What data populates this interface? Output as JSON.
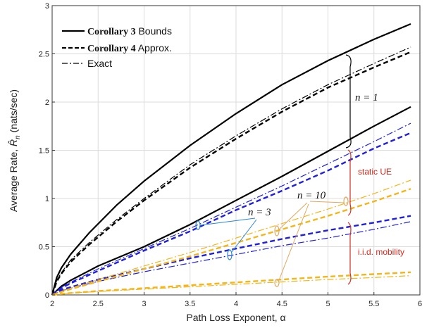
{
  "chart_data": {
    "type": "line",
    "xlabel": "Path Loss Exponent, α",
    "ylabel_main": "Average Rate, ",
    "ylabel_sym": "R̂",
    "ylabel_sub": "n",
    "ylabel_unit": " (nats/sec)",
    "xlim": [
      2,
      6
    ],
    "ylim": [
      0,
      3
    ],
    "xticks": [
      "2",
      "2.5",
      "3",
      "3.5",
      "4",
      "4.5",
      "5",
      "5.5",
      "6"
    ],
    "yticks": [
      "0",
      "0.5",
      "1",
      "1.5",
      "2",
      "2.5",
      "3"
    ],
    "grid": true,
    "legend_position": "top-left",
    "legend": [
      {
        "style": "solid",
        "bold": "Corollary 3",
        "rest": " Bounds"
      },
      {
        "style": "dashed",
        "bold": "Corollary 4",
        "rest": " Approx."
      },
      {
        "style": "dashdot",
        "bold": "",
        "rest": "Exact"
      }
    ],
    "colors": {
      "black": "#000000",
      "blue": "#1f1fdc",
      "yellow": "#f2b51a",
      "red": "#d42a1d",
      "bracket_blue": "#2a86d6",
      "bracket_orange": "#e0a860"
    },
    "series": [
      {
        "group": "n1",
        "style": "solid",
        "color": "black",
        "x": [
          2,
          2.05,
          2.1,
          2.2,
          2.4,
          2.7,
          3,
          3.5,
          4,
          4.5,
          5,
          5.5,
          5.9
        ],
        "y": [
          0,
          0.18,
          0.28,
          0.42,
          0.64,
          0.93,
          1.18,
          1.55,
          1.88,
          2.18,
          2.43,
          2.65,
          2.81
        ]
      },
      {
        "group": "n1",
        "style": "dashed",
        "color": "black",
        "x": [
          2,
          2.05,
          2.1,
          2.2,
          2.4,
          2.7,
          3,
          3.5,
          4,
          4.5,
          5,
          5.5,
          5.9
        ],
        "y": [
          0,
          0.14,
          0.22,
          0.34,
          0.52,
          0.76,
          0.98,
          1.32,
          1.62,
          1.9,
          2.15,
          2.36,
          2.52
        ]
      },
      {
        "group": "n1",
        "style": "dashdot",
        "color": "black",
        "x": [
          2,
          2.05,
          2.1,
          2.2,
          2.4,
          2.7,
          3,
          3.5,
          4,
          4.5,
          5,
          5.5,
          5.9
        ],
        "y": [
          0,
          0.15,
          0.23,
          0.36,
          0.54,
          0.78,
          1.0,
          1.35,
          1.65,
          1.93,
          2.18,
          2.4,
          2.57
        ]
      },
      {
        "group": "n3",
        "style": "solid",
        "color": "black",
        "x": [
          2,
          2.1,
          2.2,
          2.5,
          3,
          3.5,
          4,
          4.5,
          5,
          5.5,
          5.9
        ],
        "y": [
          0,
          0.09,
          0.15,
          0.3,
          0.5,
          0.73,
          0.98,
          1.23,
          1.49,
          1.75,
          1.95
        ]
      },
      {
        "group": "static",
        "style": "dashed",
        "color": "blue",
        "x": [
          2,
          2.1,
          2.2,
          2.5,
          3,
          3.5,
          4,
          4.5,
          5,
          5.5,
          5.9
        ],
        "y": [
          0,
          0.07,
          0.12,
          0.25,
          0.46,
          0.66,
          0.88,
          1.08,
          1.29,
          1.52,
          1.68
        ]
      },
      {
        "group": "static",
        "style": "dashdot",
        "color": "blue",
        "x": [
          2,
          2.1,
          2.2,
          2.5,
          3,
          3.5,
          4,
          4.5,
          5,
          5.5,
          5.9
        ],
        "y": [
          0,
          0.08,
          0.13,
          0.27,
          0.48,
          0.69,
          0.91,
          1.13,
          1.36,
          1.59,
          1.78
        ]
      },
      {
        "group": "mobility",
        "style": "dashed",
        "color": "blue",
        "x": [
          2,
          2.1,
          2.2,
          2.5,
          3,
          3.5,
          4,
          4.5,
          5,
          5.5,
          5.9
        ],
        "y": [
          0,
          0.05,
          0.08,
          0.16,
          0.27,
          0.38,
          0.48,
          0.58,
          0.67,
          0.75,
          0.82
        ]
      },
      {
        "group": "mobility",
        "style": "dashdot",
        "color": "blue",
        "x": [
          2,
          2.1,
          2.2,
          2.5,
          3,
          3.5,
          4,
          4.5,
          5,
          5.5,
          5.9
        ],
        "y": [
          0,
          0.04,
          0.07,
          0.14,
          0.24,
          0.33,
          0.42,
          0.51,
          0.59,
          0.68,
          0.76
        ]
      },
      {
        "group": "static",
        "style": "dashed",
        "color": "yellow",
        "x": [
          2,
          2.2,
          2.5,
          3,
          3.5,
          4,
          4.5,
          5,
          5.5,
          5.9
        ],
        "y": [
          0,
          0.06,
          0.14,
          0.27,
          0.4,
          0.54,
          0.68,
          0.82,
          0.97,
          1.1
        ]
      },
      {
        "group": "static",
        "style": "dashdot",
        "color": "yellow",
        "x": [
          2,
          2.2,
          2.5,
          3,
          3.5,
          4,
          4.5,
          5,
          5.5,
          5.9
        ],
        "y": [
          0,
          0.07,
          0.16,
          0.3,
          0.44,
          0.59,
          0.74,
          0.89,
          1.05,
          1.19
        ]
      },
      {
        "group": "mobility",
        "style": "dashed",
        "color": "yellow",
        "x": [
          2,
          2.2,
          2.5,
          3,
          3.5,
          4,
          4.5,
          5,
          5.5,
          5.9
        ],
        "y": [
          0,
          0.02,
          0.04,
          0.07,
          0.1,
          0.13,
          0.16,
          0.19,
          0.215,
          0.235
        ]
      },
      {
        "group": "mobility",
        "style": "dashdot",
        "color": "yellow",
        "x": [
          2,
          2.2,
          2.5,
          3,
          3.5,
          4,
          4.5,
          5,
          5.5,
          5.9
        ],
        "y": [
          0,
          0.02,
          0.035,
          0.06,
          0.085,
          0.11,
          0.135,
          0.16,
          0.18,
          0.2
        ]
      }
    ],
    "annotations": {
      "n1": "n = 1",
      "n3": "n = 3",
      "n10": "n = 10",
      "static": "static UE",
      "mobility": "i.i.d. mobility"
    }
  }
}
